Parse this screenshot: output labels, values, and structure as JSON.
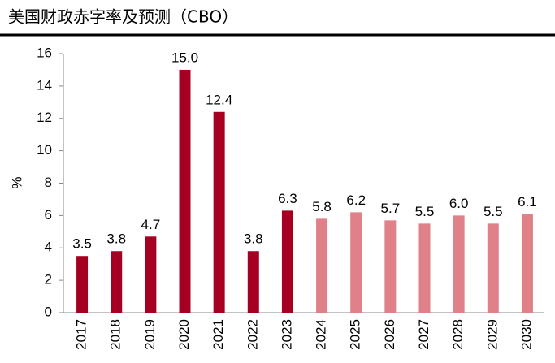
{
  "chart_data": {
    "type": "bar",
    "title": "美国财政赤字率及预测（CBO）",
    "y_label": "%",
    "categories": [
      "2017",
      "2018",
      "2019",
      "2020",
      "2021",
      "2022",
      "2023",
      "2024",
      "2025",
      "2026",
      "2027",
      "2028",
      "2029",
      "2030"
    ],
    "values": [
      3.5,
      3.8,
      4.7,
      15,
      12.4,
      3.8,
      6.3,
      5.8,
      6.2,
      5.7,
      5.5,
      6,
      5.5,
      6.1
    ],
    "value_labels": [
      "3.5",
      "3.8",
      "4.7",
      "15.0",
      "12.4",
      "3.8",
      "6.3",
      "5.8",
      "6.2",
      "5.7",
      "5.5",
      "6.0",
      "5.5",
      "6.1"
    ],
    "colors": [
      "#a50021",
      "#a50021",
      "#a50021",
      "#a50021",
      "#a50021",
      "#a50021",
      "#a50021",
      "#e08088",
      "#e08088",
      "#e08088",
      "#e08088",
      "#e08088",
      "#e08088",
      "#e08088"
    ],
    "ylim": [
      0,
      16
    ],
    "yticks": [
      0,
      2,
      4,
      6,
      8,
      10,
      12,
      14,
      16
    ],
    "grid": false
  }
}
